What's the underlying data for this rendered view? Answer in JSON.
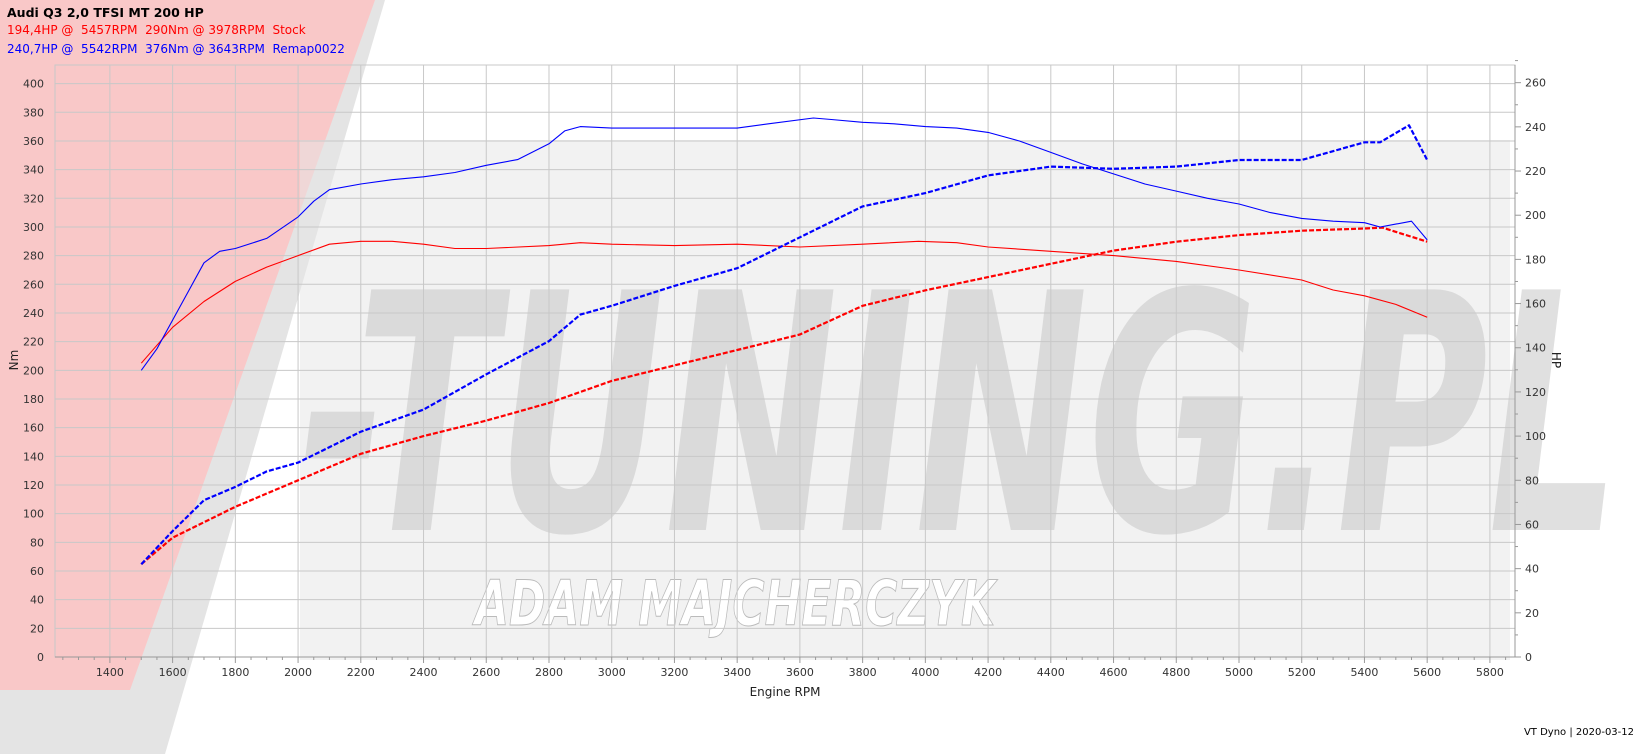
{
  "header": {
    "title": "Audi Q3 2,0 TFSI MT 200 HP",
    "stock_line": "194,4HP @  5457RPM  290Nm @ 3978RPM  Stock",
    "remap_line": "240,7HP @  5542RPM  376Nm @ 3643RPM  Remap0022"
  },
  "footer": "VT Dyno | 2020-03-12",
  "watermark": {
    "logo": "V-TUNING.PL",
    "name": "ADAM MAJCHERCZYK"
  },
  "chart_data": {
    "type": "line",
    "xlabel": "Engine RPM",
    "ylabel": "Nm",
    "y2label": "HP",
    "xlim": [
      1225,
      5880
    ],
    "ylim": [
      0,
      413
    ],
    "y2lim": [
      0,
      268
    ],
    "xticks": [
      1400,
      1600,
      1800,
      2000,
      2200,
      2400,
      2600,
      2800,
      3000,
      3200,
      3400,
      3600,
      3800,
      4000,
      4200,
      4400,
      4600,
      4800,
      5000,
      5200,
      5400,
      5600,
      5800
    ],
    "yticks": [
      0,
      20,
      40,
      60,
      80,
      100,
      120,
      140,
      160,
      180,
      200,
      220,
      240,
      260,
      280,
      300,
      320,
      340,
      360,
      380,
      400
    ],
    "y2ticks": [
      0,
      20,
      40,
      60,
      80,
      100,
      120,
      140,
      160,
      180,
      200,
      220,
      240,
      260
    ],
    "grid": true,
    "colors": {
      "stock": "#ff0000",
      "remap": "#0000ff"
    },
    "series": [
      {
        "name": "Stock",
        "quantity": "torque",
        "axis": "left",
        "style": "solid",
        "color": "#ff0000",
        "x": [
          1500,
          1600,
          1700,
          1800,
          1900,
          2000,
          2100,
          2200,
          2300,
          2400,
          2500,
          2600,
          2800,
          2900,
          3000,
          3200,
          3400,
          3600,
          3800,
          3978,
          4100,
          4200,
          4400,
          4600,
          4800,
          5000,
          5200,
          5300,
          5400,
          5500,
          5600
        ],
        "y": [
          205,
          230,
          248,
          262,
          272,
          280,
          288,
          290,
          290,
          288,
          285,
          285,
          287,
          289,
          288,
          287,
          288,
          286,
          288,
          290,
          289,
          286,
          283,
          280,
          276,
          270,
          263,
          256,
          252,
          246,
          237
        ]
      },
      {
        "name": "Stock",
        "quantity": "power",
        "axis": "right",
        "style": "dashed",
        "color": "#ff0000",
        "x": [
          1500,
          1600,
          1800,
          2000,
          2200,
          2400,
          2600,
          2800,
          3000,
          3200,
          3400,
          3600,
          3800,
          4000,
          4200,
          4400,
          4600,
          4800,
          5000,
          5200,
          5400,
          5457,
          5600
        ],
        "y": [
          42,
          54,
          68,
          80,
          92,
          100,
          107,
          115,
          125,
          132,
          139,
          146,
          159,
          166,
          172,
          178,
          184,
          188,
          191,
          193,
          194,
          194.4,
          188
        ]
      },
      {
        "name": "Remap0022",
        "quantity": "torque",
        "axis": "left",
        "style": "solid",
        "color": "#0000ff",
        "x": [
          1500,
          1550,
          1600,
          1650,
          1700,
          1750,
          1800,
          1900,
          2000,
          2050,
          2100,
          2200,
          2300,
          2400,
          2500,
          2600,
          2700,
          2800,
          2850,
          2900,
          3000,
          3200,
          3400,
          3500,
          3643,
          3700,
          3800,
          3900,
          4000,
          4100,
          4200,
          4300,
          4400,
          4500,
          4600,
          4700,
          4800,
          4900,
          5000,
          5100,
          5200,
          5300,
          5400,
          5450,
          5500,
          5550,
          5600
        ],
        "y": [
          200,
          215,
          235,
          255,
          275,
          283,
          285,
          292,
          307,
          318,
          326,
          330,
          333,
          335,
          338,
          343,
          347,
          358,
          367,
          370,
          369,
          369,
          369,
          372,
          376,
          375,
          373,
          372,
          370,
          369,
          366,
          360,
          352,
          344,
          337,
          330,
          325,
          320,
          316,
          310,
          306,
          304,
          303,
          300,
          302,
          304,
          291
        ]
      },
      {
        "name": "Remap0022",
        "quantity": "power",
        "axis": "right",
        "style": "dashed",
        "color": "#0000ff",
        "x": [
          1500,
          1600,
          1700,
          1800,
          1900,
          2000,
          2200,
          2400,
          2600,
          2800,
          2900,
          3000,
          3200,
          3400,
          3600,
          3800,
          4000,
          4200,
          4400,
          4600,
          4800,
          5000,
          5200,
          5400,
          5450,
          5542,
          5600
        ],
        "y": [
          42,
          57,
          71,
          77,
          84,
          88,
          102,
          112,
          128,
          143,
          155,
          159,
          168,
          176,
          190,
          204,
          210,
          218,
          222,
          221,
          222,
          225,
          225,
          233,
          233,
          240.7,
          225
        ]
      }
    ]
  }
}
